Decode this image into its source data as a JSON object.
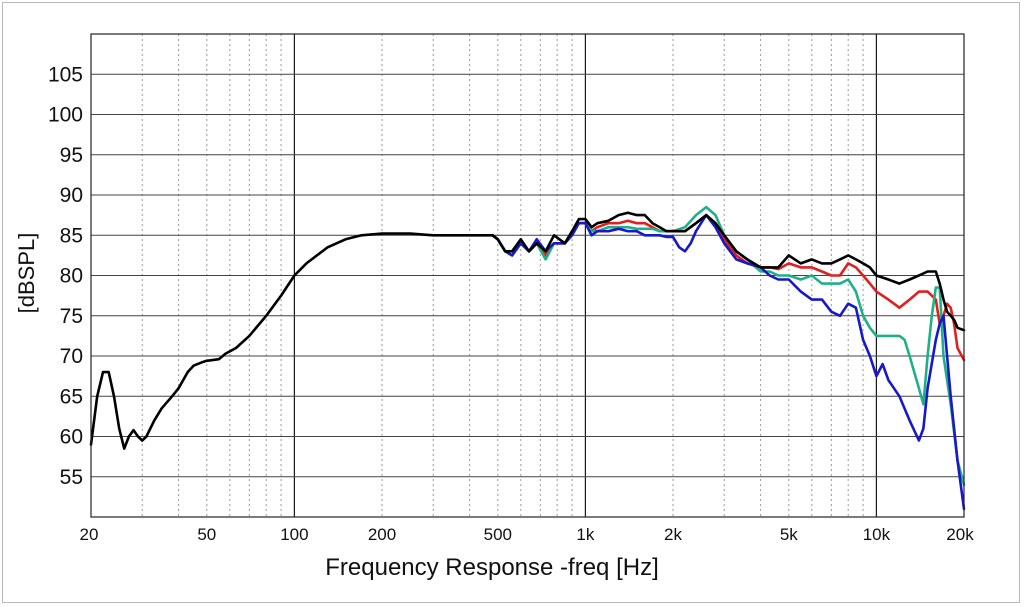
{
  "chart_data": {
    "type": "line",
    "title": "",
    "xlabel": "Frequency Response -freq [Hz]",
    "ylabel": "[dBSPL]",
    "x_scale": "log",
    "xlim": [
      20,
      20000
    ],
    "ylim": [
      50,
      110
    ],
    "grid": true,
    "legend": "none",
    "x_ticks": [
      {
        "v": 20,
        "label": "20"
      },
      {
        "v": 50,
        "label": "50"
      },
      {
        "v": 100,
        "label": "100"
      },
      {
        "v": 200,
        "label": "200"
      },
      {
        "v": 500,
        "label": "500"
      },
      {
        "v": 1000,
        "label": "1k"
      },
      {
        "v": 2000,
        "label": "2k"
      },
      {
        "v": 5000,
        "label": "5k"
      },
      {
        "v": 10000,
        "label": "10k"
      },
      {
        "v": 20000,
        "label": "20k"
      }
    ],
    "y_ticks": [
      55,
      60,
      65,
      70,
      75,
      80,
      85,
      90,
      95,
      100,
      105
    ],
    "series": [
      {
        "color": "#000000",
        "points": [
          [
            20,
            59
          ],
          [
            21,
            65
          ],
          [
            22,
            68
          ],
          [
            23,
            68
          ],
          [
            24,
            65
          ],
          [
            25,
            61
          ],
          [
            26,
            58.5
          ],
          [
            27,
            60
          ],
          [
            28,
            60.8
          ],
          [
            29,
            60
          ],
          [
            30,
            59.5
          ],
          [
            31,
            60
          ],
          [
            33,
            62
          ],
          [
            35,
            63.5
          ],
          [
            38,
            65
          ],
          [
            40,
            66
          ],
          [
            43,
            68
          ],
          [
            45,
            68.8
          ],
          [
            48,
            69.2
          ],
          [
            50,
            69.4
          ],
          [
            55,
            69.6
          ],
          [
            58,
            70.3
          ],
          [
            63,
            71
          ],
          [
            70,
            72.5
          ],
          [
            80,
            75
          ],
          [
            90,
            77.5
          ],
          [
            100,
            80
          ],
          [
            110,
            81.5
          ],
          [
            130,
            83.5
          ],
          [
            150,
            84.5
          ],
          [
            170,
            85
          ],
          [
            200,
            85.2
          ],
          [
            250,
            85.2
          ],
          [
            300,
            85
          ],
          [
            400,
            85
          ],
          [
            480,
            85
          ],
          [
            500,
            84.5
          ],
          [
            530,
            83
          ],
          [
            560,
            83
          ],
          [
            600,
            84.5
          ],
          [
            640,
            83
          ],
          [
            680,
            84
          ],
          [
            730,
            83
          ],
          [
            780,
            85
          ],
          [
            850,
            84
          ],
          [
            900,
            85.5
          ],
          [
            950,
            87
          ],
          [
            1000,
            87
          ],
          [
            1050,
            86
          ],
          [
            1100,
            86.5
          ],
          [
            1200,
            86.8
          ],
          [
            1300,
            87.5
          ],
          [
            1400,
            87.8
          ],
          [
            1500,
            87.5
          ],
          [
            1600,
            87.5
          ],
          [
            1700,
            86.5
          ],
          [
            1800,
            86
          ],
          [
            1900,
            85.5
          ],
          [
            2000,
            85.5
          ],
          [
            2200,
            85.5
          ],
          [
            2400,
            86.5
          ],
          [
            2600,
            87.5
          ],
          [
            2800,
            86.5
          ],
          [
            3000,
            85
          ],
          [
            3300,
            83
          ],
          [
            3600,
            82
          ],
          [
            4000,
            81
          ],
          [
            4300,
            81
          ],
          [
            4600,
            81
          ],
          [
            5000,
            82.5
          ],
          [
            5500,
            81.5
          ],
          [
            6000,
            82
          ],
          [
            6500,
            81.5
          ],
          [
            7000,
            81.5
          ],
          [
            7500,
            82
          ],
          [
            8000,
            82.5
          ],
          [
            8500,
            82
          ],
          [
            9000,
            81.5
          ],
          [
            9500,
            81
          ],
          [
            10000,
            80
          ],
          [
            11000,
            79.5
          ],
          [
            12000,
            79
          ],
          [
            13000,
            79.5
          ],
          [
            14000,
            80
          ],
          [
            15000,
            80.5
          ],
          [
            16000,
            80.5
          ],
          [
            16500,
            79
          ],
          [
            17000,
            77
          ],
          [
            17500,
            75.5
          ],
          [
            18000,
            75
          ],
          [
            18500,
            74.5
          ],
          [
            19000,
            73.5
          ],
          [
            20000,
            73.2
          ]
        ]
      },
      {
        "color": "#e02020",
        "points": [
          [
            480,
            85
          ],
          [
            500,
            84.5
          ],
          [
            530,
            83
          ],
          [
            560,
            82.5
          ],
          [
            600,
            84
          ],
          [
            640,
            83
          ],
          [
            680,
            84
          ],
          [
            730,
            82.5
          ],
          [
            780,
            84
          ],
          [
            850,
            84
          ],
          [
            900,
            85.5
          ],
          [
            950,
            86.5
          ],
          [
            1000,
            86.5
          ],
          [
            1050,
            85.5
          ],
          [
            1100,
            86
          ],
          [
            1200,
            86.5
          ],
          [
            1300,
            86.5
          ],
          [
            1400,
            86.8
          ],
          [
            1500,
            86.5
          ],
          [
            1600,
            86.5
          ],
          [
            1700,
            86
          ],
          [
            1800,
            85.5
          ],
          [
            1900,
            85.5
          ],
          [
            2000,
            85.5
          ],
          [
            2200,
            85.5
          ],
          [
            2400,
            86.5
          ],
          [
            2600,
            87.5
          ],
          [
            2800,
            86.5
          ],
          [
            3000,
            84.5
          ],
          [
            3300,
            82.5
          ],
          [
            3600,
            81.5
          ],
          [
            4000,
            81
          ],
          [
            4300,
            81
          ],
          [
            4600,
            80.8
          ],
          [
            5000,
            81.5
          ],
          [
            5500,
            81
          ],
          [
            6000,
            81
          ],
          [
            6500,
            80.5
          ],
          [
            7000,
            80
          ],
          [
            7500,
            80
          ],
          [
            8000,
            81.5
          ],
          [
            8500,
            81
          ],
          [
            9000,
            80
          ],
          [
            9500,
            79
          ],
          [
            10000,
            78
          ],
          [
            11000,
            77
          ],
          [
            12000,
            76
          ],
          [
            13000,
            77
          ],
          [
            14000,
            78
          ],
          [
            15000,
            78
          ],
          [
            16000,
            77
          ],
          [
            16500,
            74
          ],
          [
            17000,
            75
          ],
          [
            17500,
            76.5
          ],
          [
            18000,
            76
          ],
          [
            18500,
            74
          ],
          [
            19000,
            71
          ],
          [
            20000,
            69.5
          ]
        ]
      },
      {
        "color": "#20b088",
        "points": [
          [
            480,
            85
          ],
          [
            500,
            84.5
          ],
          [
            530,
            83
          ],
          [
            560,
            82.5
          ],
          [
            600,
            84
          ],
          [
            640,
            83
          ],
          [
            680,
            84
          ],
          [
            730,
            82
          ],
          [
            780,
            84
          ],
          [
            850,
            84
          ],
          [
            900,
            85.5
          ],
          [
            950,
            86.5
          ],
          [
            1000,
            86.5
          ],
          [
            1050,
            85.5
          ],
          [
            1100,
            85.5
          ],
          [
            1200,
            86
          ],
          [
            1300,
            86
          ],
          [
            1400,
            86
          ],
          [
            1500,
            85.8
          ],
          [
            1600,
            85.8
          ],
          [
            1700,
            85.8
          ],
          [
            1800,
            85.5
          ],
          [
            1900,
            85.5
          ],
          [
            2000,
            85.5
          ],
          [
            2200,
            86
          ],
          [
            2400,
            87.5
          ],
          [
            2600,
            88.5
          ],
          [
            2800,
            87.5
          ],
          [
            3000,
            85
          ],
          [
            3300,
            83
          ],
          [
            3600,
            82
          ],
          [
            4000,
            80.5
          ],
          [
            4300,
            80.5
          ],
          [
            4600,
            80
          ],
          [
            5000,
            80
          ],
          [
            5500,
            79.5
          ],
          [
            6000,
            80
          ],
          [
            6500,
            79
          ],
          [
            7000,
            79
          ],
          [
            7500,
            79
          ],
          [
            8000,
            79.5
          ],
          [
            8500,
            78
          ],
          [
            9000,
            75
          ],
          [
            9500,
            73.5
          ],
          [
            10000,
            72.5
          ],
          [
            11000,
            72.5
          ],
          [
            12000,
            72.5
          ],
          [
            12500,
            72
          ],
          [
            13000,
            70
          ],
          [
            14000,
            66
          ],
          [
            14500,
            64
          ],
          [
            15000,
            70
          ],
          [
            15500,
            75
          ],
          [
            16000,
            78.5
          ],
          [
            16500,
            78.5
          ],
          [
            17000,
            70
          ],
          [
            18000,
            64
          ],
          [
            19000,
            57
          ],
          [
            20000,
            54
          ]
        ]
      },
      {
        "color": "#1818c8",
        "points": [
          [
            480,
            85
          ],
          [
            500,
            84.5
          ],
          [
            530,
            83
          ],
          [
            560,
            82.5
          ],
          [
            600,
            84
          ],
          [
            640,
            83
          ],
          [
            680,
            84.5
          ],
          [
            730,
            83
          ],
          [
            780,
            84
          ],
          [
            850,
            84
          ],
          [
            900,
            85
          ],
          [
            950,
            86.5
          ],
          [
            1000,
            86.5
          ],
          [
            1050,
            85
          ],
          [
            1100,
            85.5
          ],
          [
            1200,
            85.5
          ],
          [
            1300,
            85.8
          ],
          [
            1400,
            85.5
          ],
          [
            1500,
            85.5
          ],
          [
            1600,
            85
          ],
          [
            1700,
            85
          ],
          [
            1800,
            85
          ],
          [
            1900,
            84.8
          ],
          [
            2000,
            84.8
          ],
          [
            2100,
            83.5
          ],
          [
            2200,
            83
          ],
          [
            2300,
            84
          ],
          [
            2400,
            85.5
          ],
          [
            2600,
            87.5
          ],
          [
            2800,
            86
          ],
          [
            3000,
            84
          ],
          [
            3300,
            82
          ],
          [
            3600,
            81.5
          ],
          [
            4000,
            81
          ],
          [
            4300,
            80
          ],
          [
            4600,
            79.5
          ],
          [
            5000,
            79.5
          ],
          [
            5500,
            78
          ],
          [
            6000,
            77
          ],
          [
            6500,
            77
          ],
          [
            7000,
            75.5
          ],
          [
            7500,
            75
          ],
          [
            8000,
            76.5
          ],
          [
            8500,
            76
          ],
          [
            9000,
            72
          ],
          [
            9500,
            70
          ],
          [
            10000,
            67.5
          ],
          [
            10500,
            69
          ],
          [
            11000,
            67
          ],
          [
            12000,
            65
          ],
          [
            13000,
            62
          ],
          [
            14000,
            59.5
          ],
          [
            14500,
            61
          ],
          [
            15000,
            66
          ],
          [
            16000,
            72
          ],
          [
            16500,
            74
          ],
          [
            17000,
            75
          ],
          [
            17500,
            70
          ],
          [
            18000,
            65
          ],
          [
            19000,
            57
          ],
          [
            20000,
            51
          ]
        ]
      }
    ]
  }
}
